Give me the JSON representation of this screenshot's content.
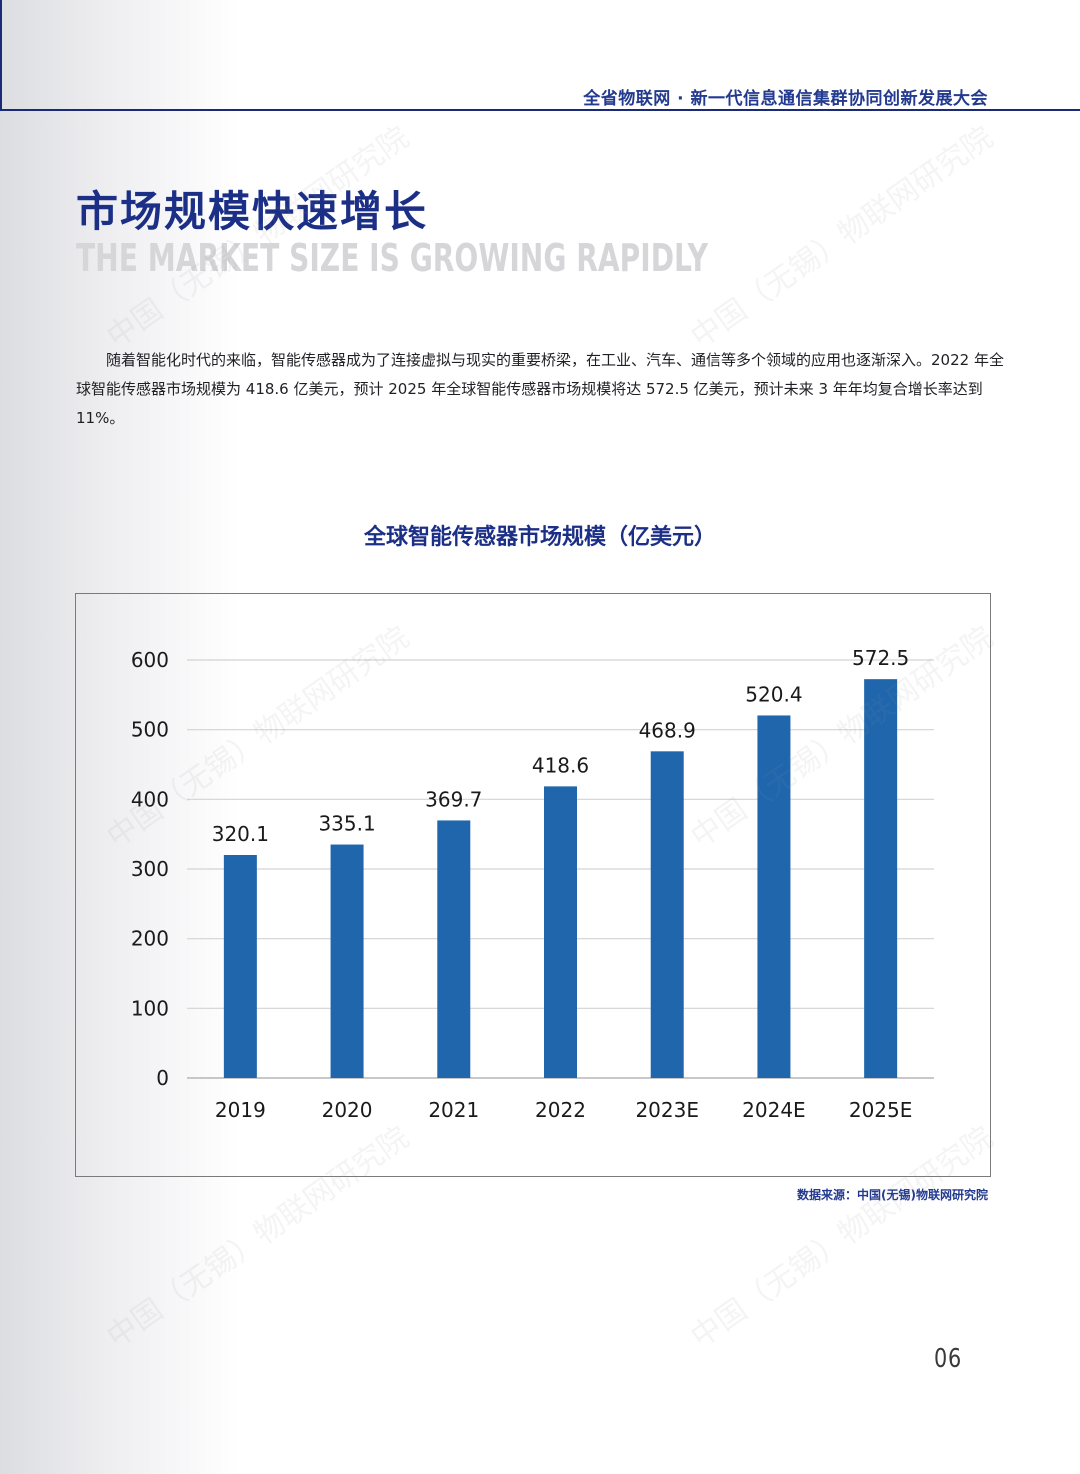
{
  "header": {
    "conference": "全省物联网 · 新一代信息通信集群协同创新发展大会"
  },
  "section": {
    "title_cn": "市场规模快速增长",
    "title_en": "THE MARKET SIZE IS GROWING RAPIDLY"
  },
  "intro": "随着智能化时代的来临，智能传感器成为了连接虚拟与现实的重要桥梁，在工业、汽车、通信等多个领域的应用也逐渐深入。2022 年全球智能传感器市场规模为 418.6 亿美元，预计 2025 年全球智能传感器市场规模将达 572.5 亿美元，预计未来 3 年年均复合增长率达到 11%。",
  "watermark": "中国（无锡）物联网研究院",
  "chart_data": {
    "type": "bar",
    "title": "全球智能传感器市场规模（亿美元）",
    "categories": [
      "2019",
      "2020",
      "2021",
      "2022",
      "2023E",
      "2024E",
      "2025E"
    ],
    "values": [
      320.1,
      335.1,
      369.7,
      418.6,
      468.9,
      520.4,
      572.5
    ],
    "value_labels": [
      "320.1",
      "335.1",
      "369.7",
      "418.6",
      "468.9",
      "520.4",
      "572.5"
    ],
    "yticks": [
      "0",
      "100",
      "200",
      "300",
      "400",
      "500",
      "600"
    ],
    "ylim": [
      0,
      600
    ],
    "grid": true,
    "bar_color": "#1f66ad",
    "xlabel": "",
    "ylabel": ""
  },
  "source": "数据来源：中国(无锡)物联网研究院",
  "page_number": "06",
  "colors": {
    "accent": "#1c2f86",
    "bar": "#1f66ad"
  }
}
